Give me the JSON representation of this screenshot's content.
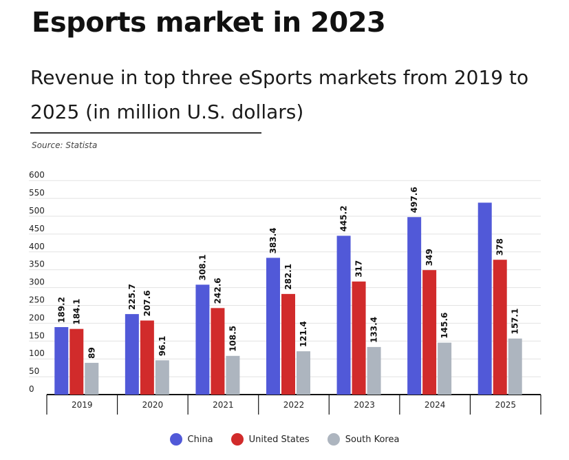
{
  "header": {
    "title": "Esports market in 2023",
    "subtitle": "Revenue in top three eSports markets from 2019 to 2025 (in million U.S. dollars)",
    "source": "Source: Statista"
  },
  "chart_data": {
    "type": "bar",
    "categories": [
      "2019",
      "2020",
      "2021",
      "2022",
      "2023",
      "2024",
      "2025"
    ],
    "series": [
      {
        "name": "China",
        "color": "#5159d8",
        "values": [
          189.2,
          225.7,
          308.1,
          383.4,
          445.2,
          497.6,
          538
        ],
        "labels": [
          "189.2",
          "225.7",
          "308.1",
          "383.4",
          "445.2",
          "497.6",
          ""
        ]
      },
      {
        "name": "United States",
        "color": "#d12b2b",
        "values": [
          184.1,
          207.6,
          242.6,
          282.1,
          317,
          349,
          378
        ],
        "labels": [
          "184.1",
          "207.6",
          "242.6",
          "282.1",
          "317",
          "349",
          "378"
        ]
      },
      {
        "name": "South Korea",
        "color": "#adb5bf",
        "values": [
          89,
          96.1,
          108.5,
          121.4,
          133.4,
          145.6,
          157.1
        ],
        "labels": [
          "89",
          "96.1",
          "108.5",
          "121.4",
          "133.4",
          "145.6",
          "157.1"
        ]
      }
    ],
    "yticks": [
      "0",
      "50",
      "100",
      "150",
      "200",
      "250",
      "300",
      "350",
      "400",
      "450",
      "500",
      "550",
      "600"
    ],
    "ylim": [
      0,
      600
    ],
    "grid": true,
    "legend_position": "bottom-center"
  }
}
